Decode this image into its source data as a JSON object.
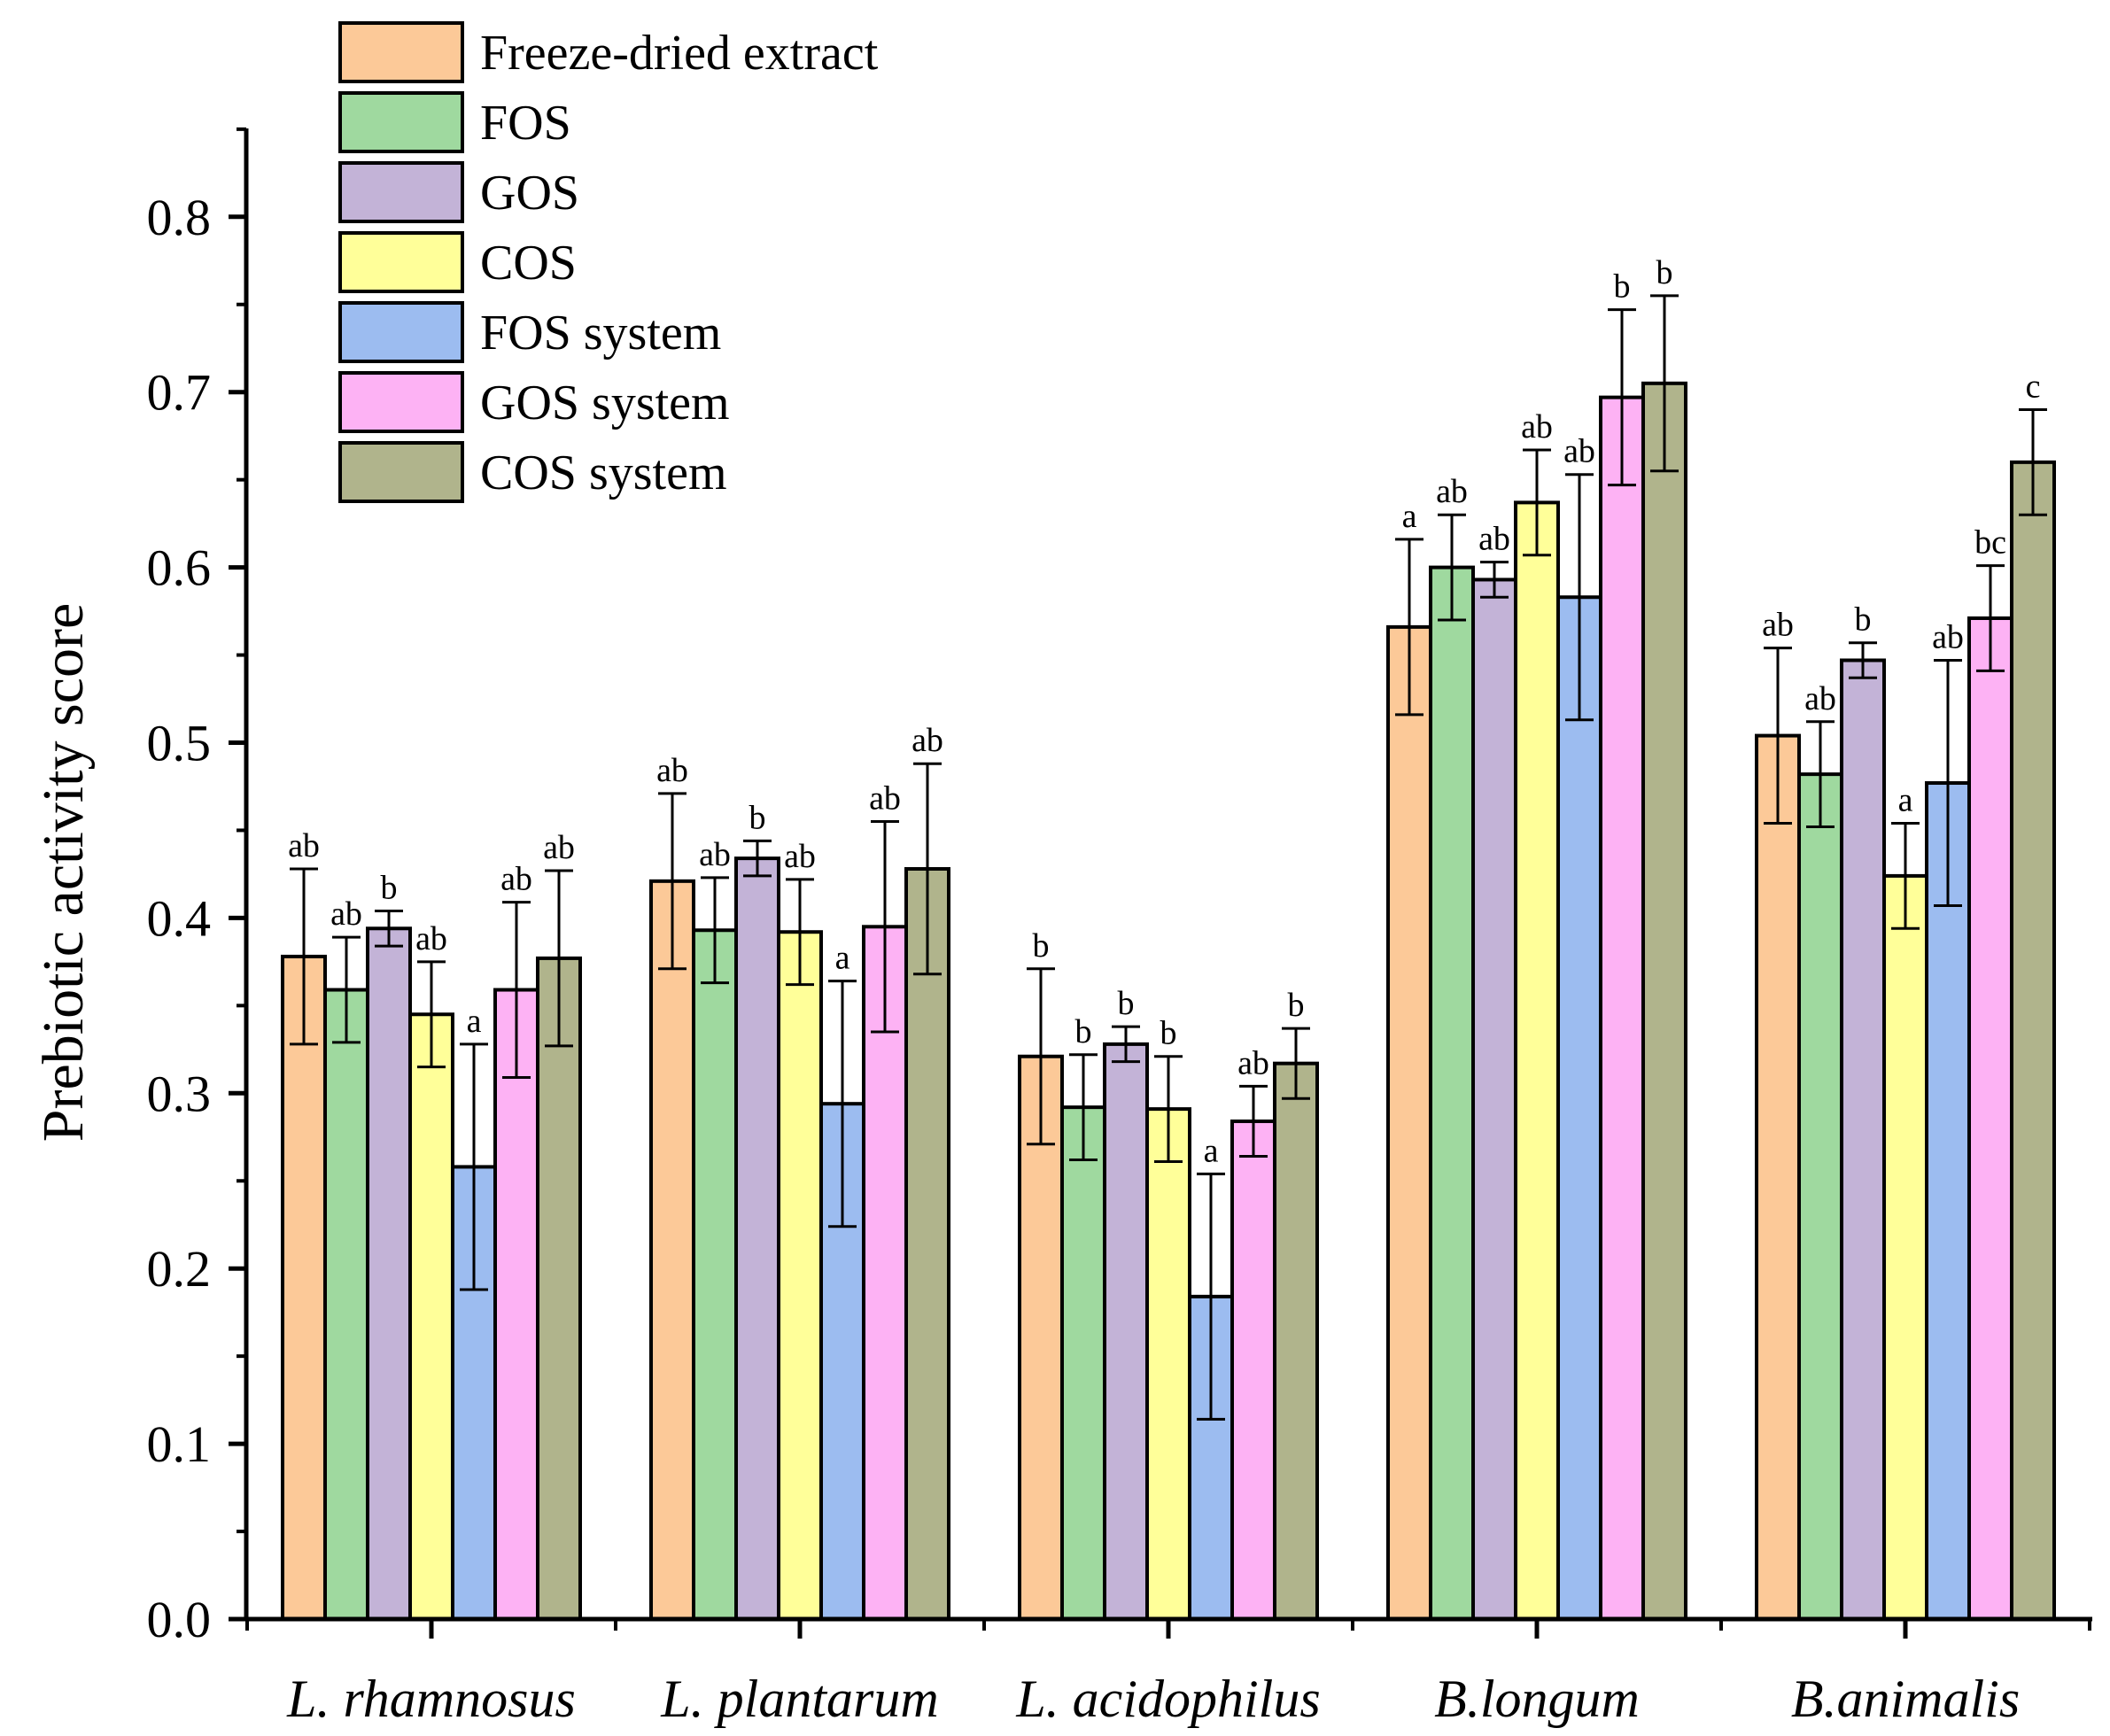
{
  "chart_data": {
    "type": "bar",
    "title": "",
    "xlabel": "",
    "ylabel": "Prebiotic activity score",
    "ylim": [
      0,
      0.85
    ],
    "yticks": [
      "0.0",
      "0.1",
      "0.2",
      "0.3",
      "0.4",
      "0.5",
      "0.6",
      "0.7",
      "0.8"
    ],
    "categories": [
      "L. rhamnosus",
      "L. plantarum",
      "L. acidophilus",
      "B.longum",
      "B.animalis"
    ],
    "legend_position": "top-left",
    "series": [
      {
        "name": "Freeze-dried extract",
        "color": "#FCC998",
        "values": [
          0.378,
          0.421,
          0.321,
          0.566,
          0.504
        ],
        "errors": [
          0.05,
          0.05,
          0.05,
          0.05,
          0.05
        ],
        "labels": [
          "ab",
          "ab",
          "b",
          "a",
          "ab"
        ]
      },
      {
        "name": "FOS",
        "color": "#9FD99F",
        "values": [
          0.359,
          0.393,
          0.292,
          0.6,
          0.482
        ],
        "errors": [
          0.03,
          0.03,
          0.03,
          0.03,
          0.03
        ],
        "labels": [
          "ab",
          "ab",
          "b",
          "ab",
          "ab"
        ]
      },
      {
        "name": "GOS",
        "color": "#C3B3D7",
        "values": [
          0.394,
          0.434,
          0.328,
          0.593,
          0.547
        ],
        "errors": [
          0.01,
          0.01,
          0.01,
          0.01,
          0.01
        ],
        "labels": [
          "b",
          "b",
          "b",
          "ab",
          "b"
        ]
      },
      {
        "name": "COS",
        "color": "#FFFF99",
        "values": [
          0.345,
          0.392,
          0.291,
          0.637,
          0.424
        ],
        "errors": [
          0.03,
          0.03,
          0.03,
          0.03,
          0.03
        ],
        "labels": [
          "ab",
          "ab",
          "b",
          "ab",
          "a"
        ]
      },
      {
        "name": "FOS system",
        "color": "#9CBCF0",
        "values": [
          0.258,
          0.294,
          0.184,
          0.583,
          0.477
        ],
        "errors": [
          0.07,
          0.07,
          0.07,
          0.07,
          0.07
        ],
        "labels": [
          "a",
          "a",
          "a",
          "ab",
          "ab"
        ]
      },
      {
        "name": "GOS system",
        "color": "#FDB2F4",
        "values": [
          0.359,
          0.395,
          0.284,
          0.697,
          0.571
        ],
        "errors": [
          0.05,
          0.06,
          0.02,
          0.05,
          0.03
        ],
        "labels": [
          "ab",
          "ab",
          "ab",
          "b",
          "bc"
        ]
      },
      {
        "name": "COS system",
        "color": "#B0B48C",
        "values": [
          0.377,
          0.428,
          0.317,
          0.705,
          0.66
        ],
        "errors": [
          0.05,
          0.06,
          0.02,
          0.05,
          0.03
        ],
        "labels": [
          "ab",
          "ab",
          "b",
          "b",
          "c"
        ]
      }
    ]
  }
}
